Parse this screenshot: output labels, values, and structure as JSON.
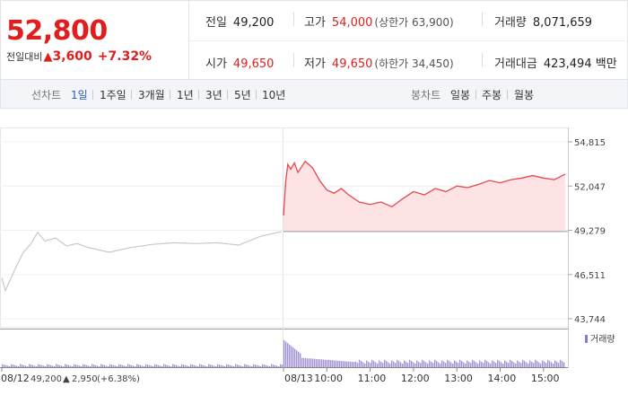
{
  "header": {
    "current_price": "52,800",
    "change_label": "전일대비",
    "change_arrow": "▲",
    "change_amount": "3,600",
    "change_percent": "+7.32%",
    "prev_close_label": "전일",
    "prev_close": "49,200",
    "high_label": "고가",
    "high": "54,000",
    "upper_limit": "(상한가 63,900)",
    "volume_label": "거래량",
    "volume": "8,071,659",
    "open_label": "시가",
    "open": "49,650",
    "low_label": "저가",
    "low": "49,650",
    "lower_limit": "(하한가 34,450)",
    "value_label": "거래대금",
    "value": "423,494",
    "value_unit": "백만"
  },
  "tabs": {
    "line_label": "선차트",
    "line_tabs": [
      "1일",
      "1주일",
      "3개월",
      "1년",
      "3년",
      "5년",
      "10년"
    ],
    "active": "1일",
    "candle_label": "봉차트",
    "candle_tabs": [
      "일봉",
      "주봉",
      "월봉"
    ]
  },
  "colors": {
    "up": "#e01e1e",
    "active_tab": "#2a5fc9",
    "prev_line": "#c8c8c8",
    "fill": "#fde3e3",
    "volume": "#a493d3"
  },
  "chart_data": {
    "type": "line",
    "ylim": [
      43744,
      54815
    ],
    "y_ticks": [
      "54,815",
      "52,047",
      "49,279",
      "46,511",
      "43,744"
    ],
    "y_tick_values": [
      54815,
      52047,
      49279,
      46511,
      43744
    ],
    "reference_price": 49200,
    "x_labels": [
      "08/12",
      "08/13",
      "10:00",
      "11:00",
      "12:00",
      "13:00",
      "14:00",
      "15:00"
    ],
    "prev_day_info": {
      "date": "08/12",
      "close": "49,200",
      "arrow": "▲",
      "change": "2,950",
      "change_pct": "(+6.38%)"
    },
    "volume_legend": "거래량",
    "series": [
      {
        "name": "08/12",
        "x": [
          "08/12 09:00",
          "08/12 09:05",
          "08/12 09:10",
          "08/12 09:20",
          "08/12 09:30",
          "08/12 09:40",
          "08/12 09:50",
          "08/12 10:00",
          "08/12 10:15",
          "08/12 10:30",
          "08/12 10:45",
          "08/12 11:00",
          "08/12 11:30",
          "08/12 12:00",
          "08/12 12:30",
          "08/12 13:00",
          "08/12 13:30",
          "08/12 14:00",
          "08/12 14:30",
          "08/12 15:00",
          "08/12 15:30"
        ],
        "values": [
          46300,
          45500,
          46000,
          47000,
          47900,
          48400,
          49150,
          48600,
          48800,
          48300,
          48450,
          48200,
          47900,
          48200,
          48400,
          48500,
          48450,
          48500,
          48350,
          48900,
          49200
        ]
      },
      {
        "name": "08/13",
        "x": [
          "09:00",
          "09:03",
          "09:06",
          "09:10",
          "09:15",
          "09:20",
          "09:30",
          "09:40",
          "09:50",
          "10:00",
          "10:10",
          "10:20",
          "10:30",
          "10:45",
          "11:00",
          "11:15",
          "11:30",
          "11:45",
          "12:00",
          "12:15",
          "12:30",
          "12:45",
          "13:00",
          "13:15",
          "13:30",
          "13:45",
          "14:00",
          "14:15",
          "14:30",
          "14:45",
          "15:00",
          "15:15",
          "15:30"
        ],
        "values": [
          50200,
          52300,
          53400,
          53100,
          53500,
          52900,
          53600,
          53200,
          52400,
          51800,
          51600,
          51900,
          51500,
          51050,
          50900,
          51050,
          50750,
          51250,
          51700,
          51500,
          51900,
          51700,
          52050,
          51950,
          52150,
          52400,
          52250,
          52450,
          52550,
          52700,
          52550,
          52450,
          52800
        ]
      }
    ]
  }
}
